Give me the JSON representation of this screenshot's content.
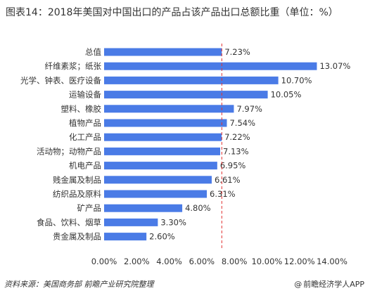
{
  "title": "图表14：2018年美国对中国出口的产品占该产品出口总额比重（单位：%）",
  "source": "资料来源：美国商务部 前瞻产业研究院整理",
  "credit": "前瞻经济学人APP",
  "credit_icon": "at-icon",
  "colors": {
    "bar": "#4a7be6",
    "reference": "#e03030",
    "text": "#333333"
  },
  "chart_data": {
    "type": "bar",
    "orientation": "horizontal",
    "categories": [
      "总值",
      "纤维素浆；纸张",
      "光学、钟表、医疗设备",
      "运输设备",
      "塑料、橡胶",
      "植物产品",
      "化工产品",
      "活动物；动物产品",
      "机电产品",
      "贱金属及制品",
      "纺织品及原料",
      "矿产品",
      "食品、饮料、烟草",
      "贵金属及制品"
    ],
    "values": [
      7.23,
      13.07,
      10.7,
      10.05,
      7.97,
      7.54,
      7.22,
      7.13,
      6.95,
      6.61,
      6.31,
      4.8,
      3.3,
      2.6
    ],
    "value_labels": [
      "7.23%",
      "13.07%",
      "10.70%",
      "10.05%",
      "7.97%",
      "7.54%",
      "7.22%",
      "7.13%",
      "6.95%",
      "6.61%",
      "6.31%",
      "4.80%",
      "3.30%",
      "2.60%"
    ],
    "xlim": [
      0,
      14
    ],
    "xticks": [
      "0.00%",
      "2.00%",
      "4.00%",
      "6.00%",
      "8.00%",
      "10.00%",
      "12.00%",
      "14.00%"
    ],
    "reference_line": {
      "value": 7.23,
      "style": "dashed"
    },
    "grid": false
  }
}
